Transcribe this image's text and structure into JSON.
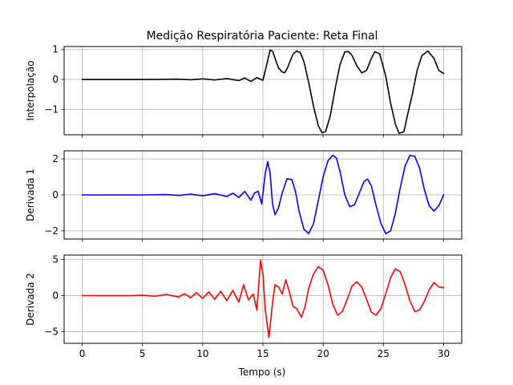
{
  "chart_data": {
    "type": "line",
    "title": "Medição Respiratória Paciente: Reta Final",
    "xlabel": "Tempo (s)",
    "xlim": [
      -1.5,
      31.5
    ],
    "x_ticks": [
      0,
      5,
      10,
      15,
      20,
      25,
      30
    ],
    "x_tick_labels": [
      "0",
      "5",
      "10",
      "15",
      "20",
      "25",
      "30"
    ],
    "grid": true,
    "panels": [
      {
        "ylabel": "Interpolação",
        "ylim": [
          -1.85,
          1.1
        ],
        "y_ticks": [
          -1,
          0,
          1
        ],
        "y_tick_labels": [
          "−1",
          "0",
          "1"
        ],
        "show_x_tick_labels": false,
        "color": "#000000",
        "x": [
          0,
          6,
          8,
          9,
          10,
          11,
          12,
          13,
          13.5,
          14,
          14.5,
          15,
          15.2,
          15.6,
          15.8,
          16.1,
          16.3,
          16.6,
          16.8,
          17,
          17.5,
          17.8,
          18.1,
          18.4,
          18.8,
          19.2,
          19.6,
          19.9,
          20.2,
          20.6,
          21,
          21.4,
          21.8,
          22.1,
          22.4,
          22.8,
          23.2,
          23.6,
          24,
          24.3,
          24.7,
          25.2,
          25.6,
          26,
          26.3,
          26.7,
          27,
          27.4,
          27.8,
          28.2,
          28.7,
          29.2,
          29.6,
          30
        ],
        "y": [
          0,
          0,
          0.01,
          -0.01,
          0.02,
          -0.02,
          0.03,
          -0.04,
          0.05,
          -0.07,
          0.06,
          -0.03,
          0.3,
          0.98,
          0.95,
          0.6,
          0.38,
          0.25,
          0.22,
          0.35,
          0.85,
          0.95,
          0.9,
          0.6,
          -0.1,
          -0.9,
          -1.55,
          -1.78,
          -1.75,
          -1.2,
          -0.3,
          0.5,
          0.92,
          0.93,
          0.8,
          0.45,
          0.22,
          0.3,
          0.7,
          0.93,
          0.85,
          0.1,
          -0.8,
          -1.5,
          -1.8,
          -1.75,
          -1.2,
          -0.5,
          0.3,
          0.8,
          0.95,
          0.7,
          0.3,
          0.2
        ]
      },
      {
        "ylabel": "Derivada 1",
        "ylim": [
          -2.45,
          2.45
        ],
        "y_ticks": [
          -2,
          0,
          2
        ],
        "y_tick_labels": [
          "−2",
          "0",
          "2"
        ],
        "show_x_tick_labels": false,
        "color": "#0000ff",
        "x": [
          0,
          5,
          7,
          8,
          9,
          10,
          11,
          12,
          12.5,
          13,
          13.5,
          14,
          14.3,
          14.6,
          14.9,
          15.2,
          15.4,
          15.6,
          15.8,
          16,
          16.3,
          16.6,
          17,
          17.4,
          17.7,
          18,
          18.4,
          18.8,
          19.2,
          19.6,
          20,
          20.4,
          20.8,
          21.1,
          21.4,
          21.8,
          22.2,
          22.6,
          23,
          23.4,
          23.7,
          24,
          24.4,
          24.8,
          25.2,
          25.6,
          26,
          26.4,
          26.8,
          27.2,
          27.6,
          28,
          28.4,
          28.8,
          29.2,
          29.6,
          30
        ],
        "y": [
          0,
          0,
          0.02,
          -0.03,
          0.04,
          -0.05,
          0.07,
          -0.09,
          0.1,
          -0.14,
          0.2,
          -0.3,
          0.1,
          0.2,
          -0.5,
          1.2,
          1.85,
          1.2,
          -0.5,
          -1.1,
          -0.7,
          0.1,
          0.9,
          0.85,
          0.2,
          -0.9,
          -1.9,
          -2.15,
          -1.6,
          -0.3,
          1.0,
          1.9,
          2.2,
          2.05,
          1.3,
          0.0,
          -0.65,
          -0.55,
          0.1,
          0.75,
          0.88,
          0.5,
          -0.6,
          -1.6,
          -2.15,
          -2.0,
          -1.0,
          0.4,
          1.6,
          2.2,
          2.15,
          1.5,
          0.3,
          -0.6,
          -0.9,
          -0.6,
          0.0
        ]
      },
      {
        "ylabel": "Derivada 2",
        "ylim": [
          -6.6,
          5.6
        ],
        "y_ticks": [
          -5,
          0,
          5
        ],
        "y_tick_labels": [
          "−5",
          "0",
          "5"
        ],
        "show_x_tick_labels": true,
        "color": "#ff0000",
        "x": [
          0,
          4,
          5,
          6,
          7,
          8,
          8.5,
          9,
          9.5,
          10,
          10.5,
          11,
          11.5,
          12,
          12.5,
          13,
          13.4,
          13.8,
          14.2,
          14.5,
          14.8,
          15,
          15.2,
          15.5,
          15.8,
          16,
          16.3,
          16.6,
          16.9,
          17.2,
          17.5,
          17.8,
          18.2,
          18.5,
          18.8,
          19.2,
          19.6,
          20,
          20.4,
          20.8,
          21.2,
          21.6,
          22,
          22.4,
          22.8,
          23.2,
          23.6,
          24,
          24.4,
          24.8,
          25.2,
          25.6,
          26,
          26.4,
          26.8,
          27.2,
          27.6,
          28,
          28.4,
          28.8,
          29.2,
          29.6,
          30
        ],
        "y": [
          0,
          0,
          0.05,
          -0.1,
          0.15,
          -0.2,
          0.25,
          -0.3,
          0.4,
          -0.4,
          0.5,
          -0.5,
          0.6,
          -0.7,
          0.7,
          -0.9,
          1.5,
          -0.6,
          0.2,
          -2.0,
          4.9,
          3.0,
          -2.0,
          -5.8,
          -1.0,
          1.5,
          1.2,
          0.2,
          2.2,
          0.5,
          -1.5,
          -1.8,
          -3.0,
          -1.5,
          1.0,
          3.0,
          4.0,
          3.5,
          1.5,
          -1.2,
          -2.7,
          -2.2,
          -0.5,
          1.3,
          1.9,
          1.2,
          -0.5,
          -2.3,
          -2.7,
          -1.8,
          0.3,
          2.5,
          3.7,
          3.3,
          1.5,
          -0.7,
          -2.2,
          -2.0,
          -0.8,
          0.8,
          1.8,
          1.2,
          1.1
        ]
      }
    ]
  }
}
